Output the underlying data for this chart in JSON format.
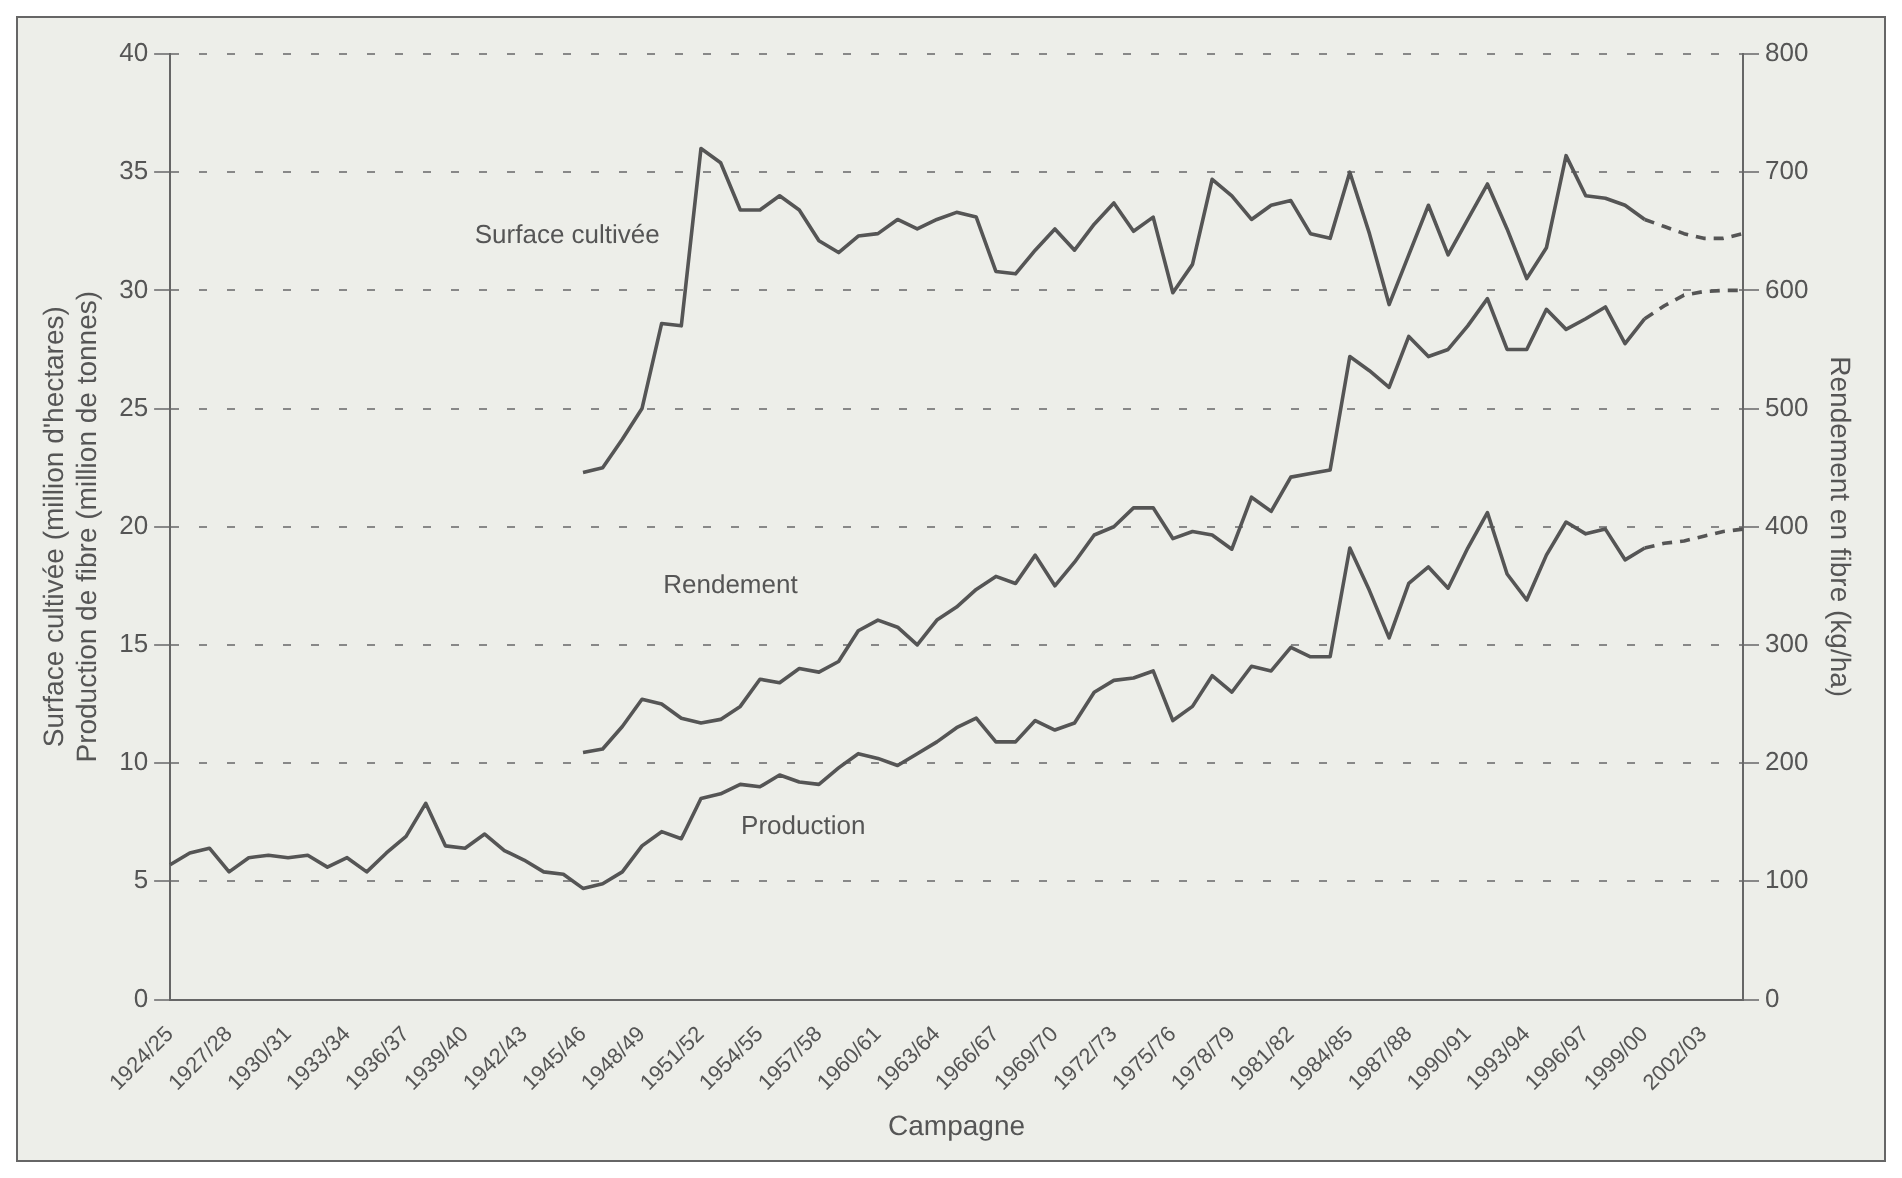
{
  "chart_data": {
    "type": "line",
    "xlabel": "Campagne",
    "ylabel": "Surface cultivée (million d'hectares)\nProduction de fibre (million de tonnes)",
    "y2label": "Rendement en fibre (kg/ha)",
    "categories": [
      "1924/25",
      null,
      null,
      "1927/28",
      null,
      null,
      "1930/31",
      null,
      null,
      "1933/34",
      null,
      null,
      "1936/37",
      null,
      null,
      "1939/40",
      null,
      null,
      "1942/43",
      null,
      null,
      "1945/46",
      null,
      null,
      "1948/49",
      null,
      null,
      "1951/52",
      null,
      null,
      "1954/55",
      null,
      null,
      "1957/58",
      null,
      null,
      "1960/61",
      null,
      null,
      "1963/64",
      null,
      null,
      "1966/67",
      null,
      null,
      "1969/70",
      null,
      null,
      "1972/73",
      null,
      null,
      "1975/76",
      null,
      null,
      "1978/79",
      null,
      null,
      "1981/82",
      null,
      null,
      "1984/85",
      null,
      null,
      "1987/88",
      null,
      null,
      "1990/91",
      null,
      null,
      "1993/94",
      null,
      null,
      "1996/97",
      null,
      null,
      "1999/00",
      null,
      null,
      "2002/03",
      null,
      null
    ],
    "series": [
      {
        "name": "Surface cultivée",
        "color": "#555555",
        "values": [
          null,
          null,
          null,
          null,
          null,
          null,
          null,
          null,
          null,
          null,
          null,
          null,
          null,
          null,
          null,
          null,
          null,
          null,
          null,
          null,
          null,
          22.3,
          22.5,
          23.7,
          25.0,
          28.6,
          28.5,
          36.0,
          35.4,
          33.4,
          33.4,
          34.0,
          33.4,
          32.1,
          31.6,
          32.3,
          32.4,
          33.0,
          32.6,
          33.0,
          33.3,
          33.1,
          30.8,
          30.7,
          31.7,
          32.6,
          31.7,
          32.8,
          33.7,
          32.5,
          33.1,
          29.9,
          31.1,
          34.7,
          34.0,
          33.0,
          33.6,
          33.8,
          32.4,
          32.2,
          35.0,
          32.4,
          29.4,
          31.5,
          33.6,
          31.5,
          33.0,
          34.5,
          32.6,
          30.5,
          31.8,
          35.7,
          34.0,
          33.9,
          33.6,
          33.0,
          null,
          null,
          null,
          null,
          null
        ]
      },
      {
        "name": "Rendement",
        "color": "#555555",
        "axis": "y2",
        "values": [
          null,
          null,
          null,
          null,
          null,
          null,
          null,
          null,
          null,
          null,
          null,
          null,
          null,
          null,
          null,
          null,
          null,
          null,
          null,
          null,
          null,
          209,
          212,
          231,
          254,
          250,
          238,
          234,
          237,
          248,
          271,
          268,
          280,
          277,
          286,
          312,
          321,
          315,
          300,
          321,
          332,
          347,
          358,
          352,
          376,
          350,
          370,
          393,
          400,
          416,
          416,
          390,
          396,
          393,
          381,
          425,
          413,
          442,
          445,
          448,
          544,
          532,
          518,
          561,
          544,
          550,
          570,
          593,
          550,
          550,
          584,
          567,
          576,
          586,
          555,
          576,
          null,
          null,
          null,
          null,
          null
        ]
      },
      {
        "name": "Production",
        "color": "#555555",
        "values": [
          5.7,
          6.2,
          6.4,
          5.4,
          6.0,
          6.1,
          6.0,
          6.1,
          5.6,
          6.0,
          5.4,
          6.2,
          6.9,
          8.3,
          6.5,
          6.4,
          7.0,
          6.3,
          5.9,
          5.4,
          5.3,
          4.7,
          4.9,
          5.4,
          6.5,
          7.1,
          6.8,
          8.5,
          8.7,
          9.1,
          9.0,
          9.5,
          9.2,
          9.1,
          9.8,
          10.4,
          10.2,
          9.9,
          10.4,
          10.9,
          11.5,
          11.9,
          10.9,
          10.9,
          11.8,
          11.4,
          11.7,
          13.0,
          13.5,
          13.6,
          13.9,
          11.8,
          12.4,
          13.7,
          13.0,
          14.1,
          13.9,
          14.9,
          14.5,
          14.5,
          19.1,
          17.3,
          15.3,
          17.6,
          18.3,
          17.4,
          19.1,
          20.6,
          18.0,
          16.9,
          18.8,
          20.2,
          19.7,
          19.9,
          18.6,
          19.1,
          null,
          null,
          null,
          null,
          null
        ]
      },
      {
        "color": "#555555",
        "line_style": "dashed",
        "values": [
          null,
          null,
          null,
          null,
          null,
          null,
          null,
          null,
          null,
          null,
          null,
          null,
          null,
          null,
          null,
          null,
          null,
          null,
          null,
          null,
          null,
          null,
          null,
          null,
          null,
          null,
          null,
          null,
          null,
          null,
          null,
          null,
          null,
          null,
          null,
          null,
          null,
          null,
          null,
          null,
          null,
          null,
          null,
          null,
          null,
          null,
          null,
          null,
          null,
          null,
          null,
          null,
          null,
          null,
          null,
          null,
          null,
          null,
          null,
          null,
          null,
          null,
          null,
          null,
          null,
          null,
          null,
          null,
          null,
          null,
          null,
          null,
          null,
          null,
          null,
          33.0,
          32.7,
          32.4,
          32.2,
          32.2,
          32.4
        ]
      },
      {
        "color": "#555555",
        "line_style": "dashed",
        "axis": "y2",
        "values": [
          null,
          null,
          null,
          null,
          null,
          null,
          null,
          null,
          null,
          null,
          null,
          null,
          null,
          null,
          null,
          null,
          null,
          null,
          null,
          null,
          null,
          null,
          null,
          null,
          null,
          null,
          null,
          null,
          null,
          null,
          null,
          null,
          null,
          null,
          null,
          null,
          null,
          null,
          null,
          null,
          null,
          null,
          null,
          null,
          null,
          null,
          null,
          null,
          null,
          null,
          null,
          null,
          null,
          null,
          null,
          null,
          null,
          null,
          null,
          null,
          null,
          null,
          null,
          null,
          null,
          null,
          null,
          null,
          null,
          null,
          null,
          null,
          null,
          null,
          null,
          576,
          587,
          596,
          599,
          600,
          600
        ]
      },
      {
        "color": "#555555",
        "line_style": "dashed",
        "values": [
          null,
          null,
          null,
          null,
          null,
          null,
          null,
          null,
          null,
          null,
          null,
          null,
          null,
          null,
          null,
          null,
          null,
          null,
          null,
          null,
          null,
          null,
          null,
          null,
          null,
          null,
          null,
          null,
          null,
          null,
          null,
          null,
          null,
          null,
          null,
          null,
          null,
          null,
          null,
          null,
          null,
          null,
          null,
          null,
          null,
          null,
          null,
          null,
          null,
          null,
          null,
          null,
          null,
          null,
          null,
          null,
          null,
          null,
          null,
          null,
          null,
          null,
          null,
          null,
          null,
          null,
          null,
          null,
          null,
          null,
          null,
          null,
          null,
          null,
          null,
          19.1,
          19.3,
          19.4,
          19.6,
          19.8,
          19.9
        ]
      }
    ],
    "ylim": [
      0,
      40
    ],
    "yticks": [
      0,
      5,
      10,
      15,
      20,
      25,
      30,
      35,
      40
    ],
    "y2lim": [
      0,
      800
    ],
    "y2ticks": [
      0,
      100,
      200,
      300,
      400,
      500,
      600,
      700,
      800
    ],
    "grid": "y",
    "legend": false,
    "marker": "none",
    "line_style": "solid"
  }
}
